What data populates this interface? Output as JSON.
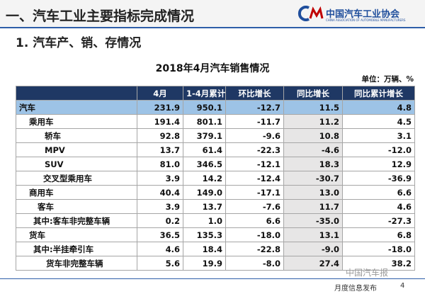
{
  "header": {
    "title": "一、汽车工业主要指标完成情况",
    "logo_text": "中国汽车工业协会",
    "logo_subtext": "CHINA ASSOCIATION OF AUTOMOBILE MANUFACTURERS"
  },
  "section": "1. 汽车产、销、存情况",
  "table": {
    "title": "2018年4月汽车销售情况",
    "unit": "单位：万辆、%",
    "columns": [
      "",
      "4月",
      "1-4月累计",
      "环比增长",
      "同比增长",
      "同比累计增长"
    ],
    "rows": [
      [
        "汽车",
        "231.9",
        "950.1",
        "-12.7",
        "11.5",
        "4.8"
      ],
      [
        "乘用车",
        "191.4",
        "801.1",
        "-11.7",
        "11.2",
        "4.5"
      ],
      [
        "轿车",
        "92.8",
        "379.1",
        "-9.6",
        "10.8",
        "3.1"
      ],
      [
        "MPV",
        "13.7",
        "61.4",
        "-22.3",
        "-4.6",
        "-12.0"
      ],
      [
        "SUV",
        "81.0",
        "346.5",
        "-12.1",
        "18.3",
        "12.9"
      ],
      [
        "交叉型乘用车",
        "3.9",
        "14.2",
        "-12.4",
        "-30.7",
        "-36.9"
      ],
      [
        "商用车",
        "40.4",
        "149.0",
        "-17.1",
        "13.0",
        "6.6"
      ],
      [
        "客车",
        "3.9",
        "13.7",
        "-7.6",
        "11.7",
        "4.6"
      ],
      [
        "其中:客车非完整车辆",
        "0.2",
        "1.0",
        "6.6",
        "-35.0",
        "-27.3"
      ],
      [
        "货车",
        "36.5",
        "135.3",
        "-18.0",
        "13.1",
        "6.8"
      ],
      [
        "其中:半挂牵引车",
        "4.6",
        "18.4",
        "-22.8",
        "-9.0",
        "-18.0"
      ],
      [
        "货车非完整车辆",
        "5.6",
        "19.9",
        "-8.0",
        "27.4",
        "38.2"
      ]
    ]
  },
  "watermark": "中国汽车报",
  "footer": {
    "label": "月度信息发布",
    "page": "4"
  }
}
